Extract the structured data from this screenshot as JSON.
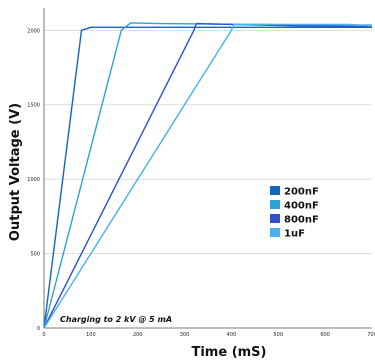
{
  "chart_data": {
    "type": "line",
    "xlabel": "Time (mS)",
    "ylabel": "Output Voltage (V)",
    "xlim": [
      0,
      700
    ],
    "ylim": [
      0,
      2150
    ],
    "xticks": [
      "0",
      "100",
      "200",
      "300",
      "400",
      "500",
      "600",
      "700"
    ],
    "yticks": [
      "0",
      "500",
      "1000",
      "1500",
      "2000"
    ],
    "grid": "horizontal",
    "legend_placement": "right",
    "annotation": "Charging to 2 kV @ 5 mA",
    "series": [
      {
        "name": "200nF",
        "color": "#1565b8",
        "points": [
          [
            0,
            0
          ],
          [
            80,
            2000
          ],
          [
            100,
            2020
          ],
          [
            300,
            2020
          ],
          [
            700,
            2020
          ]
        ]
      },
      {
        "name": "400nF",
        "color": "#2ea3d6",
        "points": [
          [
            0,
            0
          ],
          [
            165,
            2000
          ],
          [
            185,
            2050
          ],
          [
            250,
            2045
          ],
          [
            450,
            2040
          ],
          [
            700,
            2035
          ]
        ]
      },
      {
        "name": "800nF",
        "color": "#3050d0",
        "points": [
          [
            0,
            0
          ],
          [
            320,
            2000
          ],
          [
            325,
            2045
          ],
          [
            400,
            2040
          ],
          [
            550,
            2030
          ],
          [
            700,
            2025
          ]
        ]
      },
      {
        "name": "1uF",
        "color": "#4ab0ec",
        "points": [
          [
            0,
            0
          ],
          [
            400,
            2000
          ],
          [
            405,
            2040
          ],
          [
            500,
            2040
          ],
          [
            650,
            2040
          ],
          [
            700,
            2030
          ]
        ]
      }
    ]
  }
}
